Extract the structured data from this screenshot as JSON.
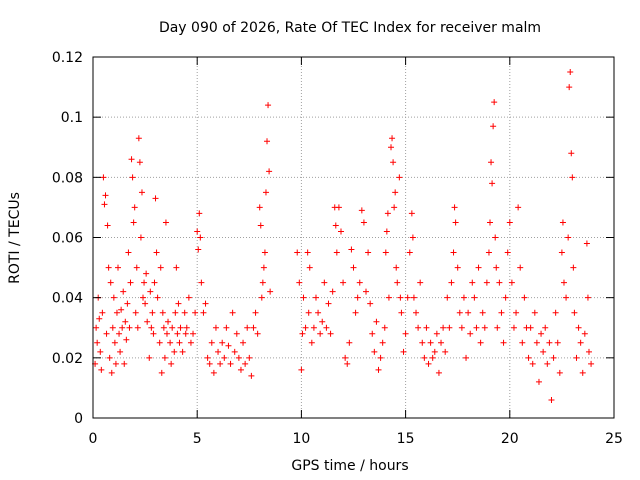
{
  "chart_data": {
    "type": "scatter",
    "title": "Day 090 of 2026, Rate Of TEC Index for receiver malm",
    "xlabel": "GPS time / hours",
    "ylabel": "ROTI / TECUs",
    "xlim": [
      0,
      25
    ],
    "ylim": [
      0,
      0.12
    ],
    "x_ticks": [
      0,
      5,
      10,
      15,
      20,
      25
    ],
    "x_tick_labels": [
      "0",
      "5",
      "10",
      "15",
      "20",
      "25"
    ],
    "y_ticks": [
      0,
      0.02,
      0.04,
      0.06,
      0.08,
      0.1,
      0.12
    ],
    "y_tick_labels": [
      "0",
      "0.02",
      "0.04",
      "0.06",
      "0.08",
      "0.1",
      "0.12"
    ],
    "grid": true,
    "marker": "+",
    "series": [
      {
        "name": "ROTI",
        "color": "#ff0000",
        "points": [
          [
            0.1,
            0.018
          ],
          [
            0.15,
            0.03
          ],
          [
            0.2,
            0.025
          ],
          [
            0.25,
            0.04
          ],
          [
            0.3,
            0.033
          ],
          [
            0.35,
            0.022
          ],
          [
            0.4,
            0.016
          ],
          [
            0.45,
            0.035
          ],
          [
            0.5,
            0.08
          ],
          [
            0.55,
            0.071
          ],
          [
            0.6,
            0.074
          ],
          [
            0.65,
            0.028
          ],
          [
            0.7,
            0.064
          ],
          [
            0.75,
            0.05
          ],
          [
            0.8,
            0.02
          ],
          [
            0.85,
            0.045
          ],
          [
            0.9,
            0.015
          ],
          [
            0.95,
            0.03
          ],
          [
            1.0,
            0.04
          ],
          [
            1.05,
            0.025
          ],
          [
            1.1,
            0.018
          ],
          [
            1.15,
            0.035
          ],
          [
            1.2,
            0.05
          ],
          [
            1.25,
            0.028
          ],
          [
            1.3,
            0.022
          ],
          [
            1.35,
            0.036
          ],
          [
            1.4,
            0.03
          ],
          [
            1.45,
            0.042
          ],
          [
            1.5,
            0.018
          ],
          [
            1.55,
            0.032
          ],
          [
            1.6,
            0.026
          ],
          [
            1.65,
            0.038
          ],
          [
            1.7,
            0.055
          ],
          [
            1.75,
            0.03
          ],
          [
            1.8,
            0.045
          ],
          [
            1.85,
            0.086
          ],
          [
            1.9,
            0.08
          ],
          [
            1.95,
            0.065
          ],
          [
            2.0,
            0.07
          ],
          [
            2.05,
            0.035
          ],
          [
            2.1,
            0.05
          ],
          [
            2.15,
            0.03
          ],
          [
            2.2,
            0.093
          ],
          [
            2.25,
            0.085
          ],
          [
            2.3,
            0.06
          ],
          [
            2.35,
            0.075
          ],
          [
            2.4,
            0.04
          ],
          [
            2.45,
            0.045
          ],
          [
            2.5,
            0.038
          ],
          [
            2.55,
            0.048
          ],
          [
            2.6,
            0.032
          ],
          [
            2.7,
            0.02
          ],
          [
            2.75,
            0.042
          ],
          [
            2.8,
            0.03
          ],
          [
            2.85,
            0.035
          ],
          [
            2.9,
            0.028
          ],
          [
            2.95,
            0.045
          ],
          [
            3.0,
            0.073
          ],
          [
            3.05,
            0.055
          ],
          [
            3.1,
            0.04
          ],
          [
            3.2,
            0.025
          ],
          [
            3.25,
            0.05
          ],
          [
            3.3,
            0.015
          ],
          [
            3.35,
            0.035
          ],
          [
            3.4,
            0.03
          ],
          [
            3.45,
            0.02
          ],
          [
            3.5,
            0.065
          ],
          [
            3.55,
            0.028
          ],
          [
            3.6,
            0.032
          ],
          [
            3.7,
            0.025
          ],
          [
            3.75,
            0.018
          ],
          [
            3.8,
            0.03
          ],
          [
            3.9,
            0.022
          ],
          [
            3.95,
            0.035
          ],
          [
            4.0,
            0.05
          ],
          [
            4.05,
            0.028
          ],
          [
            4.1,
            0.038
          ],
          [
            4.15,
            0.025
          ],
          [
            4.2,
            0.03
          ],
          [
            4.3,
            0.022
          ],
          [
            4.4,
            0.035
          ],
          [
            4.45,
            0.028
          ],
          [
            4.5,
            0.03
          ],
          [
            4.6,
            0.04
          ],
          [
            4.7,
            0.025
          ],
          [
            4.8,
            0.028
          ],
          [
            4.9,
            0.035
          ],
          [
            5.0,
            0.062
          ],
          [
            5.05,
            0.056
          ],
          [
            5.1,
            0.068
          ],
          [
            5.15,
            0.06
          ],
          [
            5.2,
            0.045
          ],
          [
            5.3,
            0.035
          ],
          [
            5.4,
            0.038
          ],
          [
            5.5,
            0.02
          ],
          [
            5.6,
            0.018
          ],
          [
            5.7,
            0.025
          ],
          [
            5.8,
            0.015
          ],
          [
            5.9,
            0.03
          ],
          [
            6.0,
            0.022
          ],
          [
            6.1,
            0.018
          ],
          [
            6.2,
            0.025
          ],
          [
            6.3,
            0.02
          ],
          [
            6.4,
            0.03
          ],
          [
            6.5,
            0.024
          ],
          [
            6.6,
            0.018
          ],
          [
            6.7,
            0.035
          ],
          [
            6.8,
            0.022
          ],
          [
            6.9,
            0.028
          ],
          [
            7.0,
            0.02
          ],
          [
            7.1,
            0.016
          ],
          [
            7.2,
            0.025
          ],
          [
            7.3,
            0.018
          ],
          [
            7.4,
            0.03
          ],
          [
            7.5,
            0.02
          ],
          [
            7.6,
            0.014
          ],
          [
            7.7,
            0.03
          ],
          [
            7.8,
            0.035
          ],
          [
            7.9,
            0.028
          ],
          [
            8.0,
            0.07
          ],
          [
            8.05,
            0.064
          ],
          [
            8.1,
            0.04
          ],
          [
            8.15,
            0.045
          ],
          [
            8.2,
            0.05
          ],
          [
            8.25,
            0.055
          ],
          [
            8.3,
            0.075
          ],
          [
            8.35,
            0.092
          ],
          [
            8.4,
            0.104
          ],
          [
            8.45,
            0.082
          ],
          [
            8.5,
            0.042
          ],
          [
            9.8,
            0.055
          ],
          [
            9.9,
            0.045
          ],
          [
            10.0,
            0.016
          ],
          [
            10.05,
            0.028
          ],
          [
            10.1,
            0.04
          ],
          [
            10.2,
            0.03
          ],
          [
            10.3,
            0.055
          ],
          [
            10.35,
            0.035
          ],
          [
            10.4,
            0.05
          ],
          [
            10.5,
            0.025
          ],
          [
            10.6,
            0.03
          ],
          [
            10.7,
            0.04
          ],
          [
            10.8,
            0.035
          ],
          [
            10.9,
            0.028
          ],
          [
            11.0,
            0.032
          ],
          [
            11.1,
            0.045
          ],
          [
            11.2,
            0.03
          ],
          [
            11.3,
            0.038
          ],
          [
            11.4,
            0.028
          ],
          [
            11.5,
            0.042
          ],
          [
            11.6,
            0.07
          ],
          [
            11.65,
            0.064
          ],
          [
            11.7,
            0.055
          ],
          [
            11.8,
            0.07
          ],
          [
            11.9,
            0.062
          ],
          [
            12.0,
            0.045
          ],
          [
            12.1,
            0.02
          ],
          [
            12.2,
            0.018
          ],
          [
            12.3,
            0.025
          ],
          [
            12.4,
            0.056
          ],
          [
            12.5,
            0.05
          ],
          [
            12.6,
            0.035
          ],
          [
            12.7,
            0.04
          ],
          [
            12.8,
            0.045
          ],
          [
            12.9,
            0.069
          ],
          [
            13.0,
            0.065
          ],
          [
            13.1,
            0.042
          ],
          [
            13.2,
            0.055
          ],
          [
            13.3,
            0.038
          ],
          [
            13.4,
            0.028
          ],
          [
            13.5,
            0.022
          ],
          [
            13.6,
            0.032
          ],
          [
            13.7,
            0.016
          ],
          [
            13.8,
            0.02
          ],
          [
            13.9,
            0.025
          ],
          [
            14.0,
            0.03
          ],
          [
            14.05,
            0.055
          ],
          [
            14.1,
            0.062
          ],
          [
            14.15,
            0.068
          ],
          [
            14.2,
            0.04
          ],
          [
            14.3,
            0.09
          ],
          [
            14.35,
            0.093
          ],
          [
            14.4,
            0.085
          ],
          [
            14.45,
            0.07
          ],
          [
            14.5,
            0.075
          ],
          [
            14.55,
            0.05
          ],
          [
            14.6,
            0.045
          ],
          [
            14.7,
            0.08
          ],
          [
            14.75,
            0.04
          ],
          [
            14.8,
            0.035
          ],
          [
            14.9,
            0.022
          ],
          [
            15.0,
            0.028
          ],
          [
            15.1,
            0.04
          ],
          [
            15.2,
            0.055
          ],
          [
            15.3,
            0.068
          ],
          [
            15.35,
            0.06
          ],
          [
            15.4,
            0.04
          ],
          [
            15.5,
            0.035
          ],
          [
            15.6,
            0.03
          ],
          [
            15.7,
            0.045
          ],
          [
            15.8,
            0.025
          ],
          [
            15.9,
            0.02
          ],
          [
            16.0,
            0.03
          ],
          [
            16.1,
            0.018
          ],
          [
            16.2,
            0.025
          ],
          [
            16.3,
            0.02
          ],
          [
            16.4,
            0.022
          ],
          [
            16.5,
            0.028
          ],
          [
            16.6,
            0.015
          ],
          [
            16.7,
            0.025
          ],
          [
            16.8,
            0.03
          ],
          [
            16.9,
            0.022
          ],
          [
            17.0,
            0.04
          ],
          [
            17.1,
            0.03
          ],
          [
            17.2,
            0.045
          ],
          [
            17.3,
            0.055
          ],
          [
            17.35,
            0.07
          ],
          [
            17.4,
            0.065
          ],
          [
            17.5,
            0.05
          ],
          [
            17.6,
            0.035
          ],
          [
            17.7,
            0.03
          ],
          [
            17.8,
            0.04
          ],
          [
            17.9,
            0.02
          ],
          [
            18.0,
            0.035
          ],
          [
            18.1,
            0.028
          ],
          [
            18.2,
            0.045
          ],
          [
            18.3,
            0.04
          ],
          [
            18.4,
            0.03
          ],
          [
            18.5,
            0.05
          ],
          [
            18.6,
            0.025
          ],
          [
            18.7,
            0.035
          ],
          [
            18.8,
            0.03
          ],
          [
            18.9,
            0.045
          ],
          [
            19.0,
            0.055
          ],
          [
            19.05,
            0.065
          ],
          [
            19.1,
            0.085
          ],
          [
            19.15,
            0.078
          ],
          [
            19.2,
            0.097
          ],
          [
            19.25,
            0.105
          ],
          [
            19.3,
            0.06
          ],
          [
            19.35,
            0.05
          ],
          [
            19.4,
            0.03
          ],
          [
            19.5,
            0.045
          ],
          [
            19.6,
            0.035
          ],
          [
            19.7,
            0.025
          ],
          [
            19.8,
            0.04
          ],
          [
            19.9,
            0.055
          ],
          [
            20.0,
            0.065
          ],
          [
            20.1,
            0.045
          ],
          [
            20.2,
            0.03
          ],
          [
            20.3,
            0.035
          ],
          [
            20.4,
            0.07
          ],
          [
            20.5,
            0.05
          ],
          [
            20.6,
            0.025
          ],
          [
            20.7,
            0.04
          ],
          [
            20.8,
            0.03
          ],
          [
            20.9,
            0.02
          ],
          [
            21.0,
            0.03
          ],
          [
            21.1,
            0.018
          ],
          [
            21.2,
            0.035
          ],
          [
            21.3,
            0.025
          ],
          [
            21.4,
            0.012
          ],
          [
            21.5,
            0.028
          ],
          [
            21.6,
            0.022
          ],
          [
            21.7,
            0.03
          ],
          [
            21.8,
            0.018
          ],
          [
            21.9,
            0.025
          ],
          [
            22.0,
            0.006
          ],
          [
            22.1,
            0.02
          ],
          [
            22.2,
            0.035
          ],
          [
            22.3,
            0.025
          ],
          [
            22.4,
            0.015
          ],
          [
            22.5,
            0.055
          ],
          [
            22.55,
            0.065
          ],
          [
            22.6,
            0.045
          ],
          [
            22.7,
            0.04
          ],
          [
            22.8,
            0.06
          ],
          [
            22.85,
            0.11
          ],
          [
            22.9,
            0.115
          ],
          [
            22.95,
            0.088
          ],
          [
            23.0,
            0.08
          ],
          [
            23.05,
            0.05
          ],
          [
            23.1,
            0.035
          ],
          [
            23.2,
            0.02
          ],
          [
            23.3,
            0.03
          ],
          [
            23.4,
            0.025
          ],
          [
            23.5,
            0.015
          ],
          [
            23.6,
            0.028
          ],
          [
            23.7,
            0.058
          ],
          [
            23.75,
            0.04
          ],
          [
            23.8,
            0.022
          ],
          [
            23.9,
            0.018
          ]
        ]
      }
    ]
  }
}
